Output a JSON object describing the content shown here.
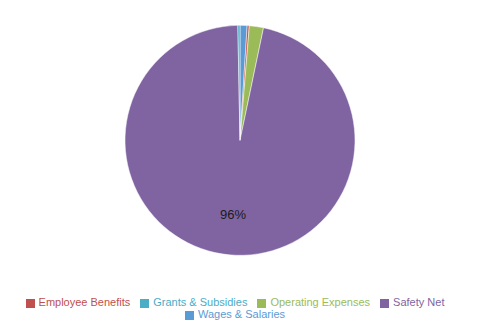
{
  "chart_data": {
    "type": "pie",
    "categories": [
      "Wages & Salaries",
      "Employee Benefits",
      "Operating Expenses",
      "Safety Net",
      "Grants & Subsidies"
    ],
    "values": [
      0.994,
      0.298,
      1.988,
      96.421,
      0.298
    ],
    "value_labels": [
      null,
      null,
      null,
      "96%",
      null
    ],
    "colors": [
      "#5b9bd5",
      "#c0504d",
      "#9bbb59",
      "#8064a2",
      "#4bacc6"
    ],
    "legend": "bottom"
  }
}
